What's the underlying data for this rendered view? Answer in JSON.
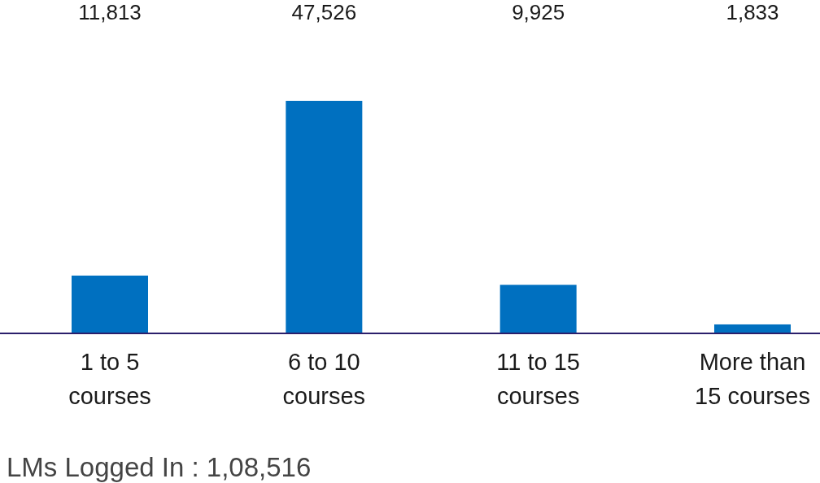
{
  "chart_data": {
    "type": "bar",
    "categories": [
      "1 to 5 courses",
      "6 to 10 courses",
      "11 to 15 courses",
      "More than 15 courses"
    ],
    "values": [
      11813,
      47526,
      9925,
      1833
    ],
    "value_labels": [
      "11,813",
      "47,526",
      "9,925",
      "1,833"
    ],
    "color": "#0070c0",
    "annotations": [
      "LMs Logged In : 1,08,516"
    ]
  }
}
